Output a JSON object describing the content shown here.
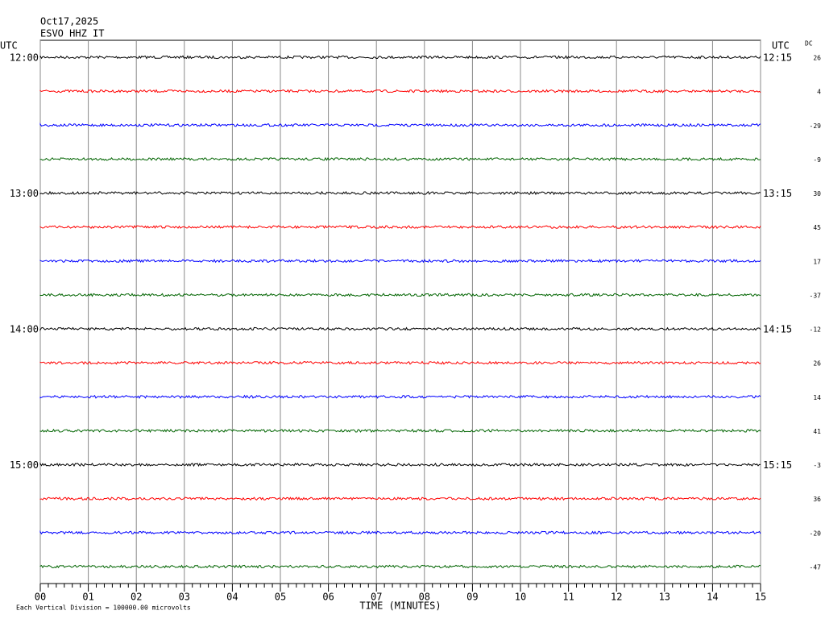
{
  "header": {
    "date": "Oct17,2025",
    "station": "ESVO HHZ IT"
  },
  "left_axis_title": "UTC",
  "right_axis_title": "UTC",
  "dc_title": "DC",
  "hour_labels": [
    {
      "left": "12:00",
      "right": "12:15"
    },
    {
      "left": "13:00",
      "right": "13:15"
    },
    {
      "left": "14:00",
      "right": "14:15"
    },
    {
      "left": "15:00",
      "right": "15:15"
    }
  ],
  "rows": [
    {
      "dc": 26,
      "color": "#000000"
    },
    {
      "dc": 4,
      "color": "#ff0000"
    },
    {
      "dc": -29,
      "color": "#0000ff"
    },
    {
      "dc": -9,
      "color": "#006400"
    },
    {
      "dc": 30,
      "color": "#000000"
    },
    {
      "dc": 45,
      "color": "#ff0000"
    },
    {
      "dc": 17,
      "color": "#0000ff"
    },
    {
      "dc": -37,
      "color": "#006400"
    },
    {
      "dc": -12,
      "color": "#000000"
    },
    {
      "dc": 26,
      "color": "#ff0000"
    },
    {
      "dc": 14,
      "color": "#0000ff"
    },
    {
      "dc": 41,
      "color": "#006400"
    },
    {
      "dc": -3,
      "color": "#000000"
    },
    {
      "dc": 36,
      "color": "#ff0000"
    },
    {
      "dc": -20,
      "color": "#0000ff"
    },
    {
      "dc": -47,
      "color": "#006400"
    }
  ],
  "xticks": [
    "00",
    "01",
    "02",
    "03",
    "04",
    "05",
    "06",
    "07",
    "08",
    "09",
    "10",
    "11",
    "12",
    "13",
    "14",
    "15"
  ],
  "x_label": "TIME (MINUTES)",
  "footer": "Each Vertical Division = 100000.00 microvolts"
}
